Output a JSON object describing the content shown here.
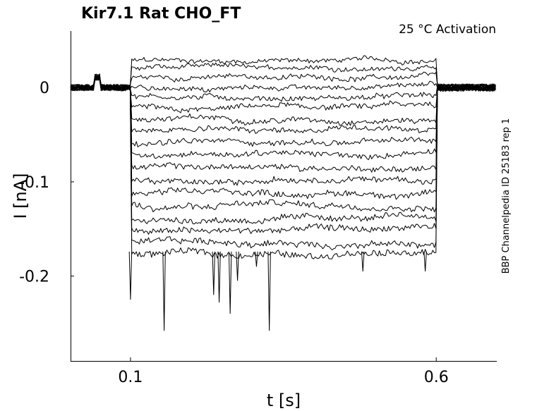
{
  "chart_data": {
    "type": "line",
    "title": "Kir7.1  Rat  CHO_FT",
    "subtitle": "25 °C  Activation",
    "side_note": "BBP Channelpedia ID 25183 rep 1",
    "xlabel": "t [s]",
    "ylabel": "I [nA]",
    "xlim": [
      0.002,
      0.699
    ],
    "ylim": [
      -0.29,
      0.06
    ],
    "xticks": [
      {
        "value": 0.1,
        "label": "0.1"
      },
      {
        "value": 0.6,
        "label": "0.6"
      }
    ],
    "yticks": [
      {
        "value": 0,
        "label": "0"
      },
      {
        "value": -0.1,
        "label": "-0.1"
      },
      {
        "value": -0.2,
        "label": "-0.2"
      }
    ],
    "grid": false,
    "legend": "none",
    "line_color": "#000000",
    "step_start": 0.1,
    "step_end": 0.6,
    "baseline": 0,
    "sweep_levels": [
      0.029,
      0.022,
      0.011,
      0.001,
      -0.01,
      -0.021,
      -0.033,
      -0.045,
      -0.058,
      -0.071,
      -0.085,
      -0.098,
      -0.112,
      -0.125,
      -0.139,
      -0.152,
      -0.165,
      -0.176
    ],
    "transient_spikes": [
      {
        "t": 0.1,
        "i": -0.225
      },
      {
        "t": 0.155,
        "i": -0.258
      },
      {
        "t": 0.236,
        "i": -0.22
      },
      {
        "t": 0.245,
        "i": -0.228
      },
      {
        "t": 0.263,
        "i": -0.24
      },
      {
        "t": 0.275,
        "i": -0.205
      },
      {
        "t": 0.306,
        "i": -0.19
      },
      {
        "t": 0.327,
        "i": -0.258
      },
      {
        "t": 0.48,
        "i": -0.195
      },
      {
        "t": 0.582,
        "i": -0.195
      }
    ]
  }
}
